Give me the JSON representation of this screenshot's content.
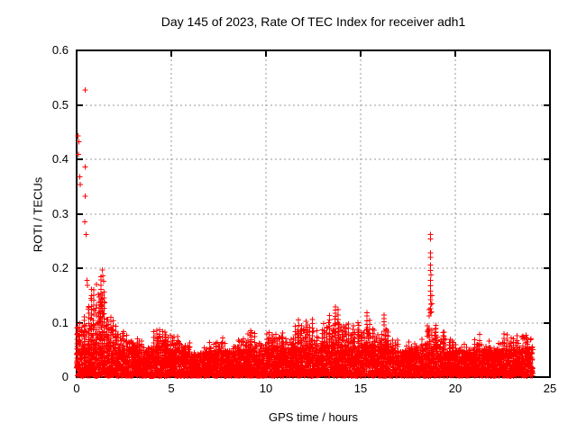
{
  "chart_data": {
    "type": "scatter",
    "title": "Day 145 of 2023, Rate Of TEC Index for receiver adh1",
    "xlabel": "GPS time / hours",
    "ylabel": "ROTI / TECUs",
    "xlim": [
      0,
      25
    ],
    "ylim": [
      0,
      0.6
    ],
    "xtick_labels": [
      "0",
      "5",
      "10",
      "15",
      "20",
      "25"
    ],
    "ytick_labels": [
      "0",
      "0.1",
      "0.2",
      "0.3",
      "0.4",
      "0.5",
      "0.6"
    ],
    "grid": true,
    "legend": null,
    "marker": "+",
    "colors": {
      "points": "#ff0000",
      "grid": "#999999",
      "border": "#000000",
      "background": "#ffffff",
      "text": "#000000"
    },
    "x_data_coverage_hours": [
      0,
      24.1
    ],
    "envelope_bin_hours": 0.5,
    "envelope_max_roti": [
      0.125,
      0.17,
      0.19,
      0.125,
      0.105,
      0.085,
      0.08,
      0.07,
      0.095,
      0.09,
      0.085,
      0.07,
      0.05,
      0.06,
      0.07,
      0.08,
      0.07,
      0.085,
      0.09,
      0.08,
      0.09,
      0.095,
      0.08,
      0.11,
      0.115,
      0.095,
      0.13,
      0.135,
      0.1,
      0.105,
      0.12,
      0.095,
      0.115,
      0.08,
      0.06,
      0.07,
      0.08,
      0.115,
      0.09,
      0.075,
      0.07,
      0.06,
      0.085,
      0.07,
      0.07,
      0.09,
      0.085,
      0.1,
      0.09
    ],
    "outlier_points": [
      [
        0.45,
        0.527
      ],
      [
        0.08,
        0.443
      ],
      [
        0.11,
        0.432
      ],
      [
        0.09,
        0.409
      ],
      [
        0.45,
        0.386
      ],
      [
        0.17,
        0.368
      ],
      [
        0.2,
        0.354
      ],
      [
        0.46,
        0.332
      ],
      [
        0.44,
        0.285
      ],
      [
        0.49,
        0.262
      ],
      [
        1.35,
        0.197
      ],
      [
        1.38,
        0.186
      ],
      [
        1.42,
        0.176
      ],
      [
        0.55,
        0.178
      ],
      [
        0.58,
        0.169
      ],
      [
        1.05,
        0.17
      ],
      [
        0.9,
        0.16
      ],
      [
        1.15,
        0.152
      ],
      [
        0.75,
        0.145
      ],
      [
        1.25,
        0.139
      ],
      [
        1.3,
        0.131
      ],
      [
        0.65,
        0.128
      ],
      [
        0.98,
        0.122
      ],
      [
        18.68,
        0.262
      ],
      [
        18.7,
        0.254
      ],
      [
        18.69,
        0.228
      ],
      [
        18.7,
        0.22
      ],
      [
        18.69,
        0.206
      ],
      [
        18.7,
        0.196
      ],
      [
        18.71,
        0.188
      ],
      [
        18.69,
        0.178
      ],
      [
        18.7,
        0.168
      ],
      [
        18.7,
        0.158
      ],
      [
        18.69,
        0.15
      ],
      [
        18.7,
        0.142
      ],
      [
        18.71,
        0.134
      ],
      [
        18.7,
        0.126
      ],
      [
        18.69,
        0.118
      ],
      [
        18.75,
        0.15
      ],
      [
        18.76,
        0.135
      ],
      [
        18.74,
        0.12
      ],
      [
        18.63,
        0.124
      ],
      [
        18.62,
        0.112
      ]
    ]
  }
}
